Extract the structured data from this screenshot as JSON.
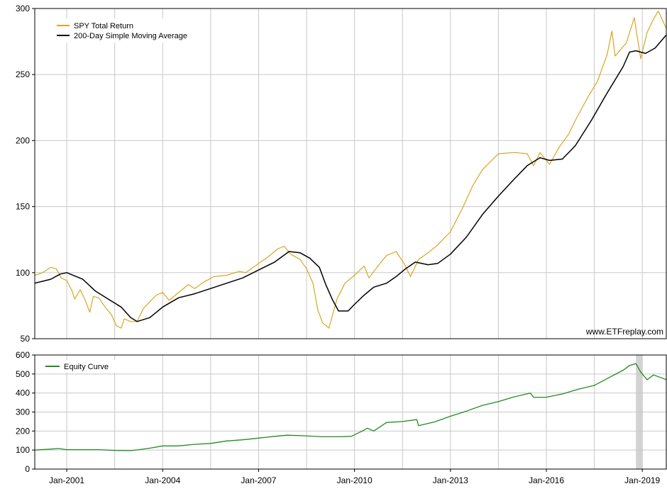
{
  "watermark": "www.ETFreplay.com",
  "colors": {
    "price": "#DAA520",
    "sma": "#000000",
    "equity": "#228B22",
    "grid": "#C8C8C8",
    "shade": "#D3D3D3"
  },
  "chart_data": [
    {
      "type": "line",
      "ylim": [
        50,
        300
      ],
      "yticks": [
        50,
        100,
        150,
        200,
        250,
        300
      ],
      "xlim": [
        2000.0,
        2019.75
      ],
      "xticks": [
        {
          "x": 2001.0,
          "label": "Jan-2001"
        },
        {
          "x": 2004.0,
          "label": "Jan-2004"
        },
        {
          "x": 2007.0,
          "label": "Jan-2007"
        },
        {
          "x": 2010.0,
          "label": "Jan-2010"
        },
        {
          "x": 2013.0,
          "label": "Jan-2013"
        },
        {
          "x": 2016.0,
          "label": "Jan-2016"
        },
        {
          "x": 2019.0,
          "label": "Jan-2019"
        }
      ],
      "legend": "top-left",
      "grid": true,
      "series": [
        {
          "name": "SPY Total Return",
          "color": "#DAA520",
          "x": [
            2000.0,
            2000.25,
            2000.5,
            2000.67,
            2000.83,
            2001.0,
            2001.17,
            2001.25,
            2001.42,
            2001.58,
            2001.72,
            2001.83,
            2002.0,
            2002.2,
            2002.4,
            2002.55,
            2002.7,
            2002.8,
            2003.0,
            2003.2,
            2003.4,
            2003.6,
            2003.8,
            2004.0,
            2004.2,
            2004.4,
            2004.6,
            2004.8,
            2005.0,
            2005.3,
            2005.6,
            2006.0,
            2006.4,
            2006.6,
            2007.0,
            2007.3,
            2007.6,
            2007.8,
            2008.0,
            2008.3,
            2008.5,
            2008.7,
            2008.85,
            2009.0,
            2009.2,
            2009.45,
            2009.7,
            2010.0,
            2010.3,
            2010.45,
            2010.7,
            2011.0,
            2011.3,
            2011.55,
            2011.75,
            2012.0,
            2012.3,
            2012.6,
            2013.0,
            2013.4,
            2013.7,
            2014.0,
            2014.5,
            2015.0,
            2015.4,
            2015.6,
            2015.8,
            2016.1,
            2016.4,
            2016.7,
            2016.9,
            2017.3,
            2017.6,
            2017.9,
            2018.05,
            2018.15,
            2018.5,
            2018.75,
            2018.95,
            2019.15,
            2019.35,
            2019.5,
            2019.75
          ],
          "y": [
            98,
            100,
            104,
            103,
            96,
            94,
            86,
            80,
            87,
            79,
            70,
            82,
            81,
            74,
            68,
            60,
            58,
            65,
            63,
            63,
            73,
            78,
            83,
            85,
            79,
            83,
            87,
            91,
            88,
            93,
            97,
            98,
            101,
            100,
            107,
            112,
            118,
            120,
            114,
            110,
            103,
            92,
            72,
            62,
            58,
            80,
            92,
            98,
            105,
            96,
            104,
            113,
            116,
            107,
            97,
            110,
            115,
            121,
            131,
            150,
            166,
            178,
            190,
            191,
            190,
            181,
            191,
            182,
            195,
            205,
            215,
            233,
            245,
            265,
            283,
            264,
            274,
            293,
            262,
            282,
            292,
            298,
            285
          ]
        },
        {
          "name": "200-Day Simple Moving Average",
          "color": "#000000",
          "x": [
            2000.0,
            2000.5,
            2000.8,
            2001.0,
            2001.5,
            2001.9,
            2002.3,
            2002.7,
            2003.0,
            2003.2,
            2003.6,
            2004.0,
            2004.5,
            2005.0,
            2005.5,
            2006.0,
            2006.5,
            2007.0,
            2007.5,
            2007.95,
            2008.3,
            2008.6,
            2008.9,
            2009.1,
            2009.3,
            2009.5,
            2009.8,
            2010.0,
            2010.3,
            2010.6,
            2011.0,
            2011.3,
            2011.6,
            2011.9,
            2012.3,
            2012.6,
            2013.0,
            2013.5,
            2014.0,
            2014.5,
            2015.0,
            2015.4,
            2015.8,
            2016.1,
            2016.5,
            2016.9,
            2017.4,
            2017.9,
            2018.4,
            2018.6,
            2018.8,
            2019.1,
            2019.4,
            2019.75
          ],
          "y": [
            92,
            95,
            99,
            100,
            95,
            86,
            80,
            74,
            66,
            63,
            66,
            74,
            81,
            84,
            88,
            92,
            96,
            102,
            108,
            116,
            115,
            111,
            104,
            91,
            80,
            71,
            71,
            76,
            83,
            89,
            92,
            97,
            103,
            108,
            106,
            107,
            114,
            127,
            144,
            158,
            171,
            181,
            187,
            185,
            186,
            196,
            215,
            236,
            256,
            267,
            268,
            266,
            270,
            280
          ]
        }
      ]
    },
    {
      "type": "line",
      "ylim": [
        0,
        600
      ],
      "yticks": [
        0,
        100,
        200,
        300,
        400,
        500,
        600
      ],
      "xlim": [
        2000.0,
        2019.75
      ],
      "legend": "top-left",
      "grid": true,
      "shaded_ranges": [
        [
          2018.8,
          2019.0
        ]
      ],
      "series": [
        {
          "name": "Equity Curve",
          "color": "#228B22",
          "x": [
            2000.0,
            2000.5,
            2000.75,
            2001.0,
            2002.0,
            2002.5,
            2003.0,
            2003.3,
            2003.6,
            2004.0,
            2004.5,
            2005.0,
            2005.5,
            2006.0,
            2006.5,
            2007.0,
            2007.5,
            2007.9,
            2008.4,
            2009.0,
            2009.5,
            2009.9,
            2010.3,
            2010.4,
            2010.6,
            2011.0,
            2011.5,
            2011.95,
            2012.0,
            2012.5,
            2013.0,
            2013.5,
            2014.0,
            2014.5,
            2015.0,
            2015.5,
            2015.6,
            2016.0,
            2016.5,
            2017.0,
            2017.5,
            2018.0,
            2018.4,
            2018.6,
            2018.8,
            2018.95,
            2019.15,
            2019.35,
            2019.6,
            2019.75
          ],
          "y": [
            100,
            105,
            108,
            102,
            102,
            98,
            97,
            103,
            110,
            122,
            122,
            130,
            135,
            148,
            154,
            163,
            172,
            178,
            175,
            170,
            170,
            172,
            205,
            215,
            200,
            245,
            250,
            260,
            228,
            248,
            278,
            305,
            335,
            355,
            380,
            400,
            378,
            378,
            395,
            420,
            440,
            485,
            520,
            545,
            555,
            510,
            470,
            495,
            480,
            470
          ]
        }
      ]
    }
  ]
}
